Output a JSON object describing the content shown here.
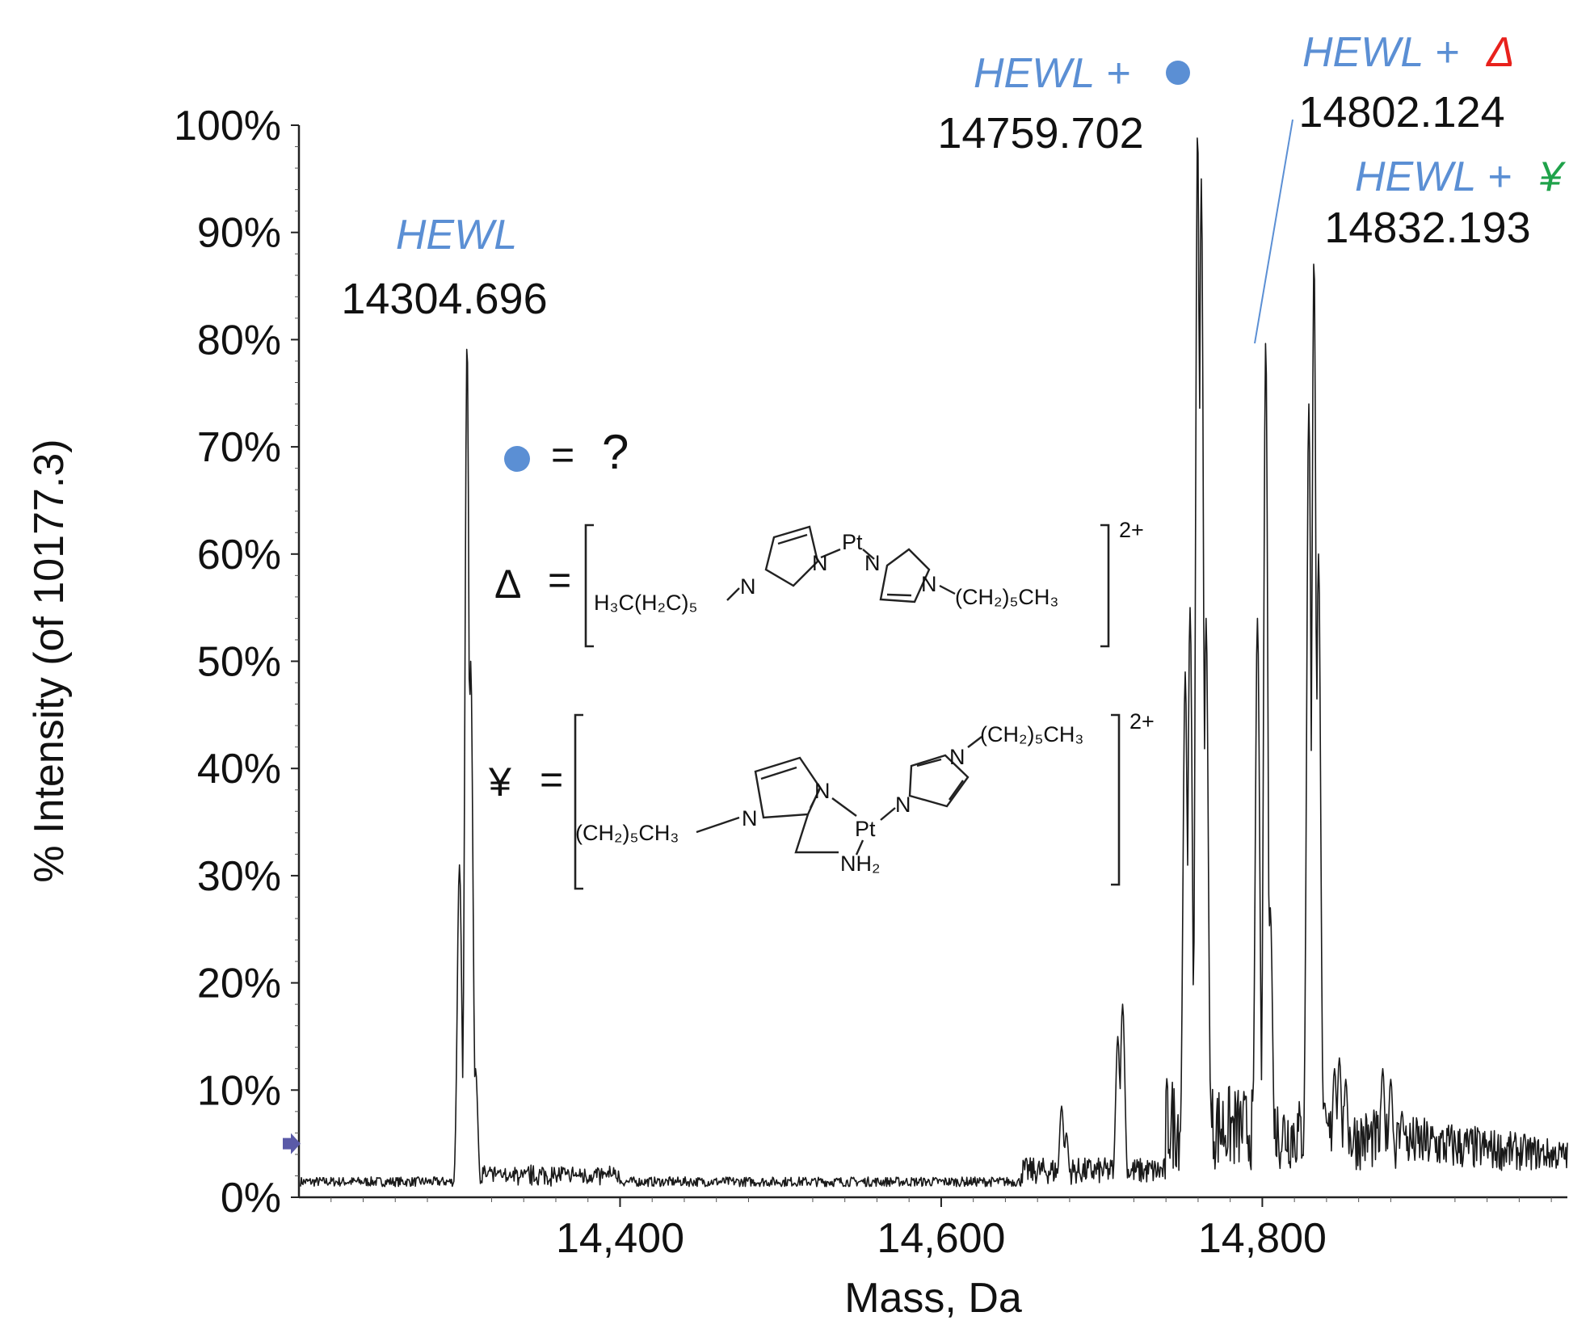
{
  "chart_data": {
    "type": "line",
    "xlabel": "Mass, Da",
    "ylabel": "% Intensity (of 10177.3)",
    "xlim": [
      14200,
      14990
    ],
    "ylim": [
      0,
      100
    ],
    "x_ticks": [
      {
        "value": 14400,
        "label": "14,400"
      },
      {
        "value": 14600,
        "label": "14,600"
      },
      {
        "value": 14800,
        "label": "14,800"
      }
    ],
    "y_ticks": [
      {
        "value": 0,
        "label": "0%"
      },
      {
        "value": 10,
        "label": "10%"
      },
      {
        "value": 20,
        "label": "20%"
      },
      {
        "value": 30,
        "label": "30%"
      },
      {
        "value": 40,
        "label": "40%"
      },
      {
        "value": 50,
        "label": "50%"
      },
      {
        "value": 60,
        "label": "60%"
      },
      {
        "value": 70,
        "label": "70%"
      },
      {
        "value": 80,
        "label": "80%"
      },
      {
        "value": 90,
        "label": "90%"
      },
      {
        "value": 100,
        "label": "100%"
      }
    ],
    "baseline_marker_y": 5,
    "peaks": [
      {
        "x": 14304.696,
        "y": 80,
        "mass_label": "14304.696",
        "name": "HEWL",
        "symbol": ""
      },
      {
        "x": 14759.702,
        "y": 100,
        "mass_label": "14759.702",
        "name": "HEWL + ",
        "symbol": "●"
      },
      {
        "x": 14802.124,
        "y": 80,
        "mass_label": "14802.124",
        "name": "HEWL + ",
        "symbol": "Δ"
      },
      {
        "x": 14832.193,
        "y": 88,
        "mass_label": "14832.193",
        "name": "HEWL + ",
        "symbol": "¥"
      }
    ],
    "minor_peaks": [
      {
        "x": 14300,
        "y": 31
      },
      {
        "x": 14307,
        "y": 50
      },
      {
        "x": 14310,
        "y": 12
      },
      {
        "x": 14675,
        "y": 8.5
      },
      {
        "x": 14678,
        "y": 6
      },
      {
        "x": 14710,
        "y": 15
      },
      {
        "x": 14713,
        "y": 18
      },
      {
        "x": 14752,
        "y": 49
      },
      {
        "x": 14755,
        "y": 55
      },
      {
        "x": 14762,
        "y": 95
      },
      {
        "x": 14765,
        "y": 54
      },
      {
        "x": 14797,
        "y": 54
      },
      {
        "x": 14805,
        "y": 27
      },
      {
        "x": 14829,
        "y": 74
      },
      {
        "x": 14835,
        "y": 60
      },
      {
        "x": 14845,
        "y": 12
      },
      {
        "x": 14848,
        "y": 13
      },
      {
        "x": 14852,
        "y": 11
      },
      {
        "x": 14875,
        "y": 12
      },
      {
        "x": 14880,
        "y": 11
      },
      {
        "x": 14887,
        "y": 8
      }
    ],
    "colors": {
      "line": "#1a1a1a",
      "name": "#5b8fd4",
      "dot": "#5b8fd4",
      "delta": "#e8211c",
      "yen": "#1fa24a",
      "marker": "#5a5aa8"
    }
  },
  "legend": {
    "dot_symbol": "●",
    "dot_eq": "=",
    "dot_value": "?",
    "delta_symbol": "Δ",
    "delta_eq": "=",
    "yen_symbol": "¥",
    "yen_eq": "=",
    "charge": "2+"
  },
  "structures": {
    "delta": {
      "left_group": "H₃C(H₂C)₅",
      "n1": "N",
      "n2": "N",
      "pt": "Pt",
      "n3": "N",
      "n4": "N",
      "right_group": "(CH₂)₅CH₃"
    },
    "yen": {
      "left_group": "(CH₂)₅CH₃",
      "n1": "N",
      "n2": "N",
      "pt": "Pt",
      "nh2": "NH₂",
      "n3": "N",
      "n4": "N",
      "top_group": "(CH₂)₅CH₃"
    }
  }
}
